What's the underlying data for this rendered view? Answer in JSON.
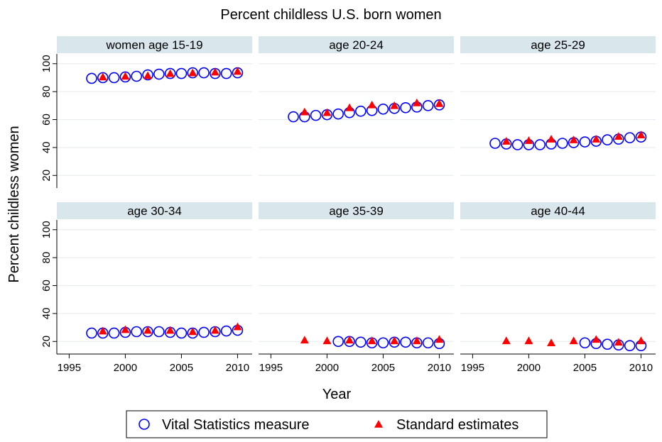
{
  "chart_data": {
    "type": "scatter",
    "title": "Percent childless U.S. born women",
    "xlabel": "Year",
    "ylabel": "Percent childless women",
    "xlim": [
      1993.9,
      2011.3
    ],
    "xticks": [
      1995,
      2000,
      2005,
      2010
    ],
    "ylim": [
      11,
      107
    ],
    "yticks": [
      20,
      40,
      60,
      80,
      100
    ],
    "grid": true,
    "series": [
      {
        "name": "Vital Statistics measure",
        "color": "#0000ff",
        "marker": "circle"
      },
      {
        "name": "Standard estimates",
        "color": "#ff0000",
        "marker": "triangle"
      }
    ],
    "panels": [
      {
        "title": "women age 15-19",
        "series": [
          {
            "x": [
              1997,
              1998,
              1999,
              2000,
              2001,
              2002,
              2003,
              2004,
              2005,
              2006,
              2007,
              2008,
              2009,
              2010
            ],
            "values": [
              89.5,
              90,
              90,
              90.5,
              91,
              92,
              92.5,
              93,
              93,
              93.5,
              93.5,
              93,
              93,
              93.5
            ]
          },
          {
            "x": [
              1998,
              2000,
              2002,
              2004,
              2006,
              2008,
              2010
            ],
            "values": [
              90.5,
              91,
              91.5,
              93,
              93.5,
              94,
              94.5
            ]
          }
        ]
      },
      {
        "title": "age 20-24",
        "series": [
          {
            "x": [
              1997,
              1998,
              1999,
              2000,
              2001,
              2002,
              2003,
              2004,
              2005,
              2006,
              2007,
              2008,
              2009,
              2010
            ],
            "values": [
              62,
              62,
              63,
              63.5,
              64,
              65,
              66,
              66.5,
              67.5,
              68,
              68.5,
              69,
              70,
              70.5
            ]
          },
          {
            "x": [
              1998,
              2000,
              2002,
              2004,
              2006,
              2008,
              2010
            ],
            "values": [
              65.5,
              65,
              68.5,
              70.5,
              70,
              72,
              71.5
            ]
          }
        ]
      },
      {
        "title": "age 25-29",
        "series": [
          {
            "x": [
              1997,
              1998,
              1999,
              2000,
              2001,
              2002,
              2003,
              2004,
              2005,
              2006,
              2007,
              2008,
              2009,
              2010
            ],
            "values": [
              43,
              42.5,
              42,
              42,
              42,
              42.5,
              43,
              43.5,
              44,
              44.5,
              45.5,
              46,
              47,
              47.5
            ]
          },
          {
            "x": [
              1998,
              2000,
              2002,
              2004,
              2006,
              2008,
              2010
            ],
            "values": [
              44.5,
              45,
              46,
              45.5,
              46,
              48,
              49
            ]
          }
        ]
      },
      {
        "title": "age 30-34",
        "series": [
          {
            "x": [
              1997,
              1998,
              1999,
              2000,
              2001,
              2002,
              2003,
              2004,
              2005,
              2006,
              2007,
              2008,
              2009,
              2010
            ],
            "values": [
              26,
              26,
              26,
              26.5,
              27,
              27,
              27,
              26.5,
              26,
              26,
              26.5,
              27,
              27.5,
              28
            ]
          },
          {
            "x": [
              1998,
              2000,
              2002,
              2004,
              2006,
              2008,
              2010
            ],
            "values": [
              27.5,
              28.5,
              28,
              28,
              27,
              28,
              30.5
            ]
          }
        ]
      },
      {
        "title": "age 35-39",
        "series": [
          {
            "x": [
              2001,
              2002,
              2003,
              2004,
              2005,
              2006,
              2007,
              2008,
              2009,
              2010
            ],
            "values": [
              20,
              20,
              19.5,
              19,
              19,
              19.5,
              19.5,
              19,
              19,
              18.5
            ]
          },
          {
            "x": [
              1998,
              2000,
              2002,
              2004,
              2006,
              2008,
              2010
            ],
            "values": [
              21,
              20.5,
              21,
              20.5,
              20.5,
              20.5,
              21.5
            ]
          }
        ]
      },
      {
        "title": "age 40-44",
        "series": [
          {
            "x": [
              2005,
              2006,
              2007,
              2008,
              2009,
              2010
            ],
            "values": [
              19,
              18.5,
              18,
              17.5,
              17,
              17
            ]
          },
          {
            "x": [
              1998,
              2000,
              2002,
              2004,
              2006,
              2008,
              2010
            ],
            "values": [
              20.5,
              20.5,
              19,
              20.5,
              21.5,
              19.5,
              20.5
            ]
          }
        ]
      }
    ]
  }
}
